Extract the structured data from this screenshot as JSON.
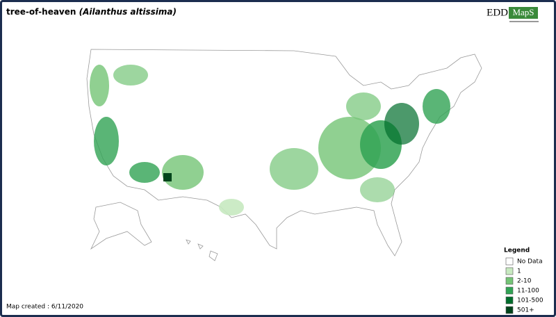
{
  "header": {
    "title": "tree-of-heaven",
    "scientific_name": "(Ailanthus altissima)",
    "logo": {
      "part1": "EDD",
      "part2": "MapS"
    }
  },
  "legend": {
    "title": "Legend",
    "items": [
      {
        "label": "No Data",
        "color": "#ffffff"
      },
      {
        "label": "1",
        "color": "#c7e9c0"
      },
      {
        "label": "2-10",
        "color": "#74c476"
      },
      {
        "label": "11-100",
        "color": "#31a354"
      },
      {
        "label": "101-500",
        "color": "#006d2c"
      },
      {
        "label": "501+",
        "color": "#00441b"
      }
    ]
  },
  "footer": {
    "map_created": "Map created : 6/11/2020"
  }
}
